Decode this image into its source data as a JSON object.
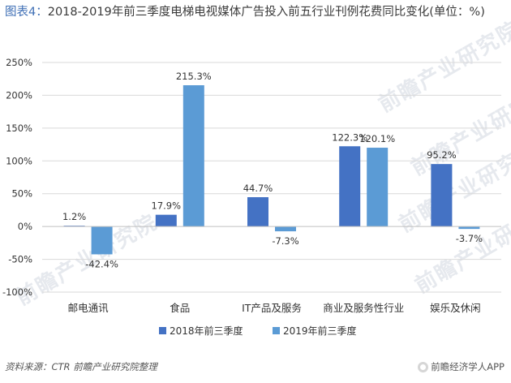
{
  "title_lead": "图表4：",
  "title_main": "2018-2019年前三季度电梯电视媒体广告投入前五行业刊例花费同比变化(单位：%)",
  "watermark": "前瞻产业研究院",
  "source": "资料来源：CTR 前瞻产业研究院整理",
  "brand": "前瞻经济学人APP",
  "colors": {
    "s2018": "#4472c4",
    "s2019": "#5b9bd5",
    "grid": "#d9d9d9",
    "axis": "#bfbfbf"
  },
  "chart_data": {
    "type": "bar",
    "categories": [
      "邮电通讯",
      "食品",
      "IT产品及服务",
      "商业及服务性行业",
      "娱乐及休闲"
    ],
    "series": [
      {
        "name": "2018年前三季度",
        "values": [
          1.2,
          17.9,
          44.7,
          122.3,
          95.2
        ],
        "labels": [
          "1.2%",
          "17.9%",
          "44.7%",
          "122.3%",
          "95.2%"
        ]
      },
      {
        "name": "2019年前三季度",
        "values": [
          -42.4,
          215.3,
          -7.3,
          120.1,
          -3.7
        ],
        "labels": [
          "-42.4%",
          "215.3%",
          "-7.3%",
          "120.1%",
          "-3.7%"
        ]
      }
    ],
    "yticks": [
      "250%",
      "200%",
      "150%",
      "100%",
      "50%",
      "0%",
      "-50%",
      "-100%"
    ],
    "ytick_values": [
      250,
      200,
      150,
      100,
      50,
      0,
      -50,
      -100
    ],
    "ylim": [
      -100,
      250
    ],
    "grid": true,
    "legend": "bottom"
  }
}
